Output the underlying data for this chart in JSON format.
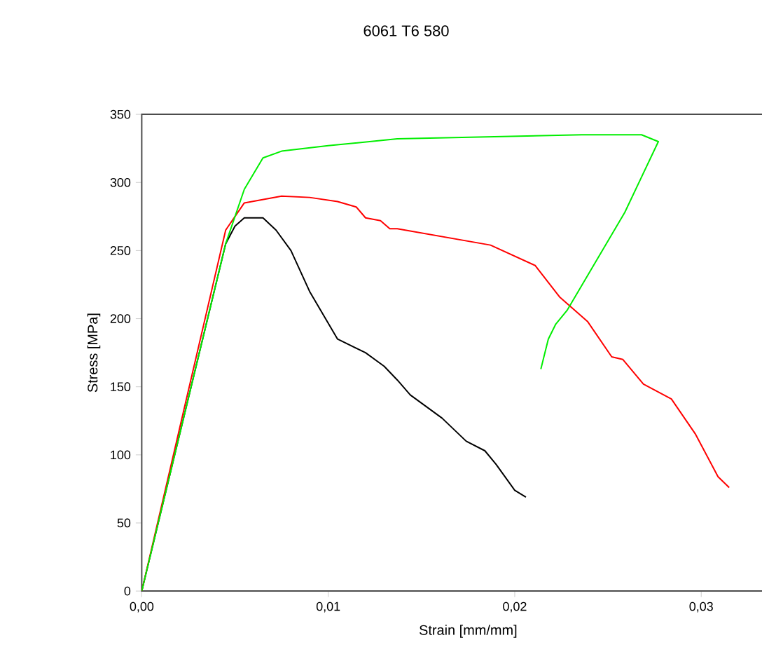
{
  "chart_data": {
    "type": "line",
    "title": "6061 T6 580",
    "xlabel": "Strain [mm/mm]",
    "ylabel": "Stress [MPa]",
    "xlim": [
      0,
      0.035
    ],
    "ylim": [
      0,
      350
    ],
    "xticks": [
      {
        "value": 0,
        "label": "0,00"
      },
      {
        "value": 0.01,
        "label": "0,01"
      },
      {
        "value": 0.02,
        "label": "0,02"
      },
      {
        "value": 0.03,
        "label": "0,03"
      }
    ],
    "yticks": [
      0,
      50,
      100,
      150,
      200,
      250,
      300,
      350
    ],
    "grid": false,
    "marker": "none",
    "line_style": "solid",
    "series": [
      {
        "color": "#000000",
        "x": [
          0,
          0.0045,
          0.005,
          0.0055,
          0.0065,
          0.0072,
          0.008,
          0.009,
          0.0105,
          0.012,
          0.013,
          0.0137,
          0.0144,
          0.0161,
          0.0174,
          0.0184,
          0.019,
          0.02,
          0.0206
        ],
        "values": [
          0,
          255,
          268,
          274,
          274,
          265,
          250,
          220,
          185,
          175,
          165,
          155,
          144,
          127,
          110,
          103,
          93,
          74,
          69
        ]
      },
      {
        "color": "#ff0000",
        "x": [
          0,
          0.0045,
          0.0055,
          0.0075,
          0.009,
          0.0105,
          0.0115,
          0.012,
          0.0128,
          0.0133,
          0.0137,
          0.0187,
          0.0211,
          0.0224,
          0.0239,
          0.0252,
          0.0258,
          0.0269,
          0.0284,
          0.0297,
          0.0309,
          0.0315
        ],
        "values": [
          0,
          265,
          285,
          290,
          289,
          286,
          282,
          274,
          272,
          266,
          266,
          254,
          239,
          216,
          198,
          172,
          170,
          152,
          141,
          115,
          84,
          76
        ]
      },
      {
        "color": "#00ee00",
        "x": [
          0,
          0.0045,
          0.0055,
          0.0065,
          0.0075,
          0.01,
          0.0137,
          0.0236,
          0.0268,
          0.0277,
          0.0259,
          0.0228,
          0.0222,
          0.0218,
          0.0214
        ],
        "values": [
          0,
          255,
          295,
          318,
          323,
          327,
          332,
          335,
          335,
          330,
          278,
          206,
          196,
          185,
          163
        ]
      }
    ]
  }
}
